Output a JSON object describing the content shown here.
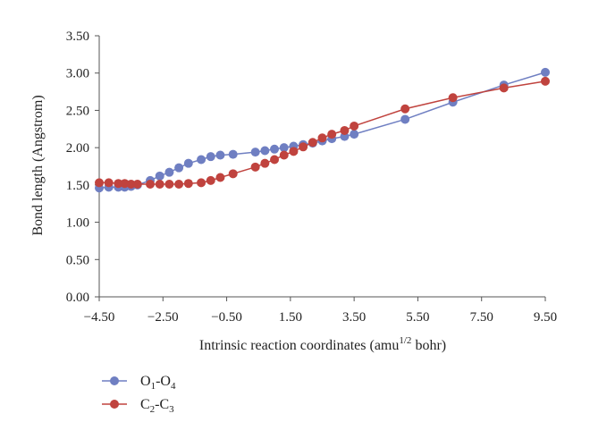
{
  "chart_data": {
    "type": "line",
    "xlabel": {
      "prefix": "Intrinsic reaction coordinates (amu",
      "sup": "1/2",
      "suffix": " bohr)"
    },
    "ylabel": "Bond length (Angstrom)",
    "xlim": [
      -4.5,
      9.5
    ],
    "ylim": [
      0,
      3.5
    ],
    "xticks": [
      "−4.50",
      "−2.50",
      "−0.50",
      "1.50",
      "3.50",
      "5.50",
      "7.50",
      "9.50"
    ],
    "yticks": [
      "0.00",
      "0.50",
      "1.00",
      "1.50",
      "2.00",
      "2.50",
      "3.00",
      "3.50"
    ],
    "legend_position": "bottom-left",
    "series": [
      {
        "legend": {
          "a": "O",
          "a_sub": "1",
          "b": "O",
          "b_sub": "4"
        },
        "color": "#6f7fc2",
        "x": [
          -4.5,
          -4.2,
          -3.9,
          -3.7,
          -3.5,
          -3.3,
          -2.9,
          -2.6,
          -2.3,
          -2.0,
          -1.7,
          -1.3,
          -1.0,
          -0.7,
          -0.3,
          0.4,
          0.7,
          1.0,
          1.3,
          1.6,
          1.9,
          2.2,
          2.5,
          2.8,
          3.2,
          3.5,
          5.1,
          6.6,
          8.2,
          9.5
        ],
        "y": [
          1.46,
          1.47,
          1.47,
          1.47,
          1.48,
          1.5,
          1.56,
          1.62,
          1.67,
          1.73,
          1.79,
          1.84,
          1.88,
          1.9,
          1.91,
          1.94,
          1.96,
          1.98,
          2.0,
          2.02,
          2.04,
          2.06,
          2.09,
          2.12,
          2.15,
          2.18,
          2.38,
          2.61,
          2.84,
          3.01
        ]
      },
      {
        "legend": {
          "a": "C",
          "a_sub": "2",
          "b": "C",
          "b_sub": "3"
        },
        "color": "#c0433e",
        "x": [
          -4.5,
          -4.2,
          -3.9,
          -3.7,
          -3.5,
          -3.3,
          -2.9,
          -2.6,
          -2.3,
          -2.0,
          -1.7,
          -1.3,
          -1.0,
          -0.7,
          -0.3,
          0.4,
          0.7,
          1.0,
          1.3,
          1.6,
          1.9,
          2.2,
          2.5,
          2.8,
          3.2,
          3.5,
          5.1,
          6.6,
          8.2,
          9.5
        ],
        "y": [
          1.53,
          1.53,
          1.52,
          1.52,
          1.51,
          1.51,
          1.51,
          1.51,
          1.51,
          1.51,
          1.52,
          1.53,
          1.56,
          1.6,
          1.65,
          1.74,
          1.79,
          1.84,
          1.9,
          1.95,
          2.01,
          2.07,
          2.13,
          2.18,
          2.23,
          2.29,
          2.52,
          2.67,
          2.8,
          2.89
        ]
      }
    ]
  }
}
